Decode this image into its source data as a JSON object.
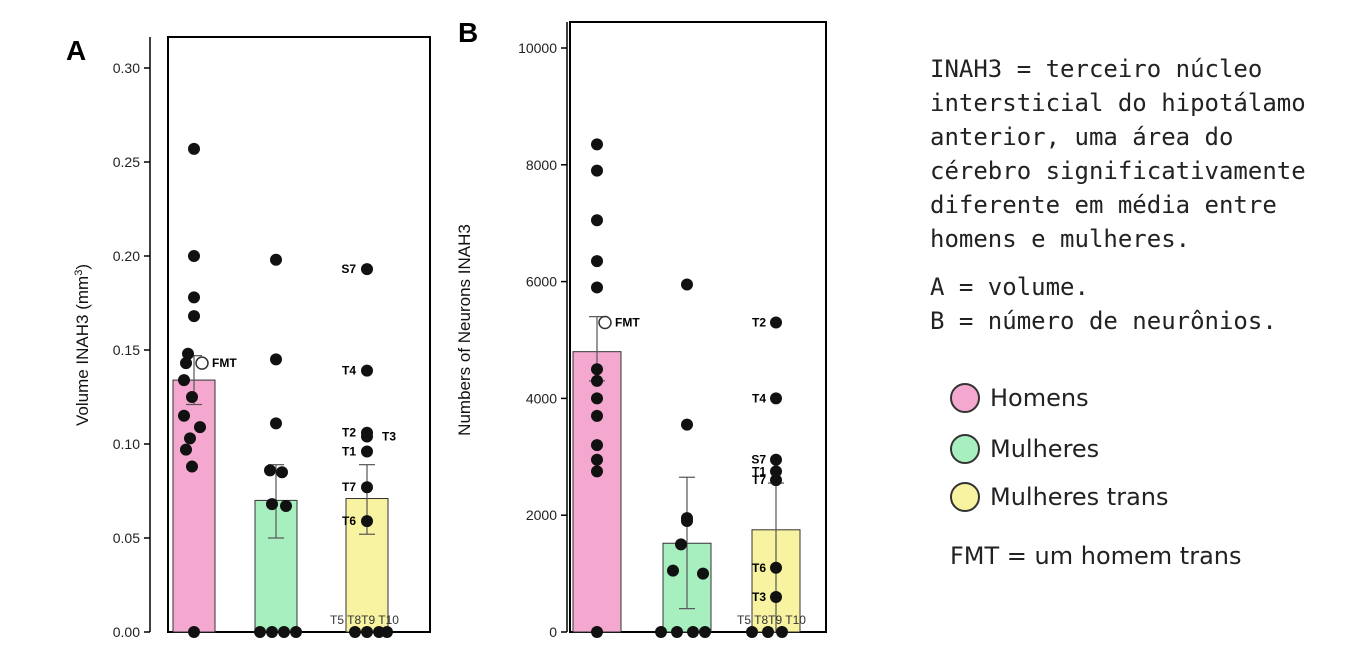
{
  "legend": {
    "definition_lines": [
      "INAH3 = terceiro núcleo",
      "intersticial do hipotálamo",
      "anterior, uma área do",
      "cérebro significativamente",
      "diferente em média entre",
      "homens e mulheres."
    ],
    "abbr_a": "A = volume.",
    "abbr_b": "B = número de neurônios.",
    "groups": [
      {
        "label": "Homens",
        "color": "#f5a8cf"
      },
      {
        "label": "Mulheres",
        "color": "#a8efc0"
      },
      {
        "label": "Mulheres trans",
        "color": "#f7f3a0"
      }
    ],
    "fmt_note": "FMT = um homem trans"
  },
  "chart_data": [
    {
      "type": "bar",
      "panel": "A",
      "ylabel": "Volume INAH3 (mm3)",
      "ylim": [
        0,
        0.3
      ],
      "yticks": [
        "0.00",
        "0.05",
        "0.10",
        "0.15",
        "0.20",
        "0.25",
        "0.30"
      ],
      "ytick_values": [
        0,
        0.05,
        0.1,
        0.15,
        0.2,
        0.25,
        0.3
      ],
      "groups": [
        {
          "name": "Homens",
          "color": "#f5a8cf",
          "mean": 0.134,
          "err_low": 0.121,
          "err_high": 0.147,
          "points": [
            0.257,
            0.2,
            0.178,
            0.168,
            0.148,
            0.143,
            0.134,
            0.125,
            0.115,
            0.109,
            0.103,
            0.097,
            0.088,
            0.0
          ]
        },
        {
          "name": "Mulheres",
          "color": "#a8efc0",
          "mean": 0.07,
          "err_low": 0.05,
          "err_high": 0.089,
          "points": [
            0.198,
            0.145,
            0.111,
            0.086,
            0.085,
            0.068,
            0.067,
            0.0,
            0.0,
            0.0,
            0.0
          ]
        },
        {
          "name": "Mulheres trans",
          "color": "#f7f3a0",
          "mean": 0.071,
          "err_low": 0.052,
          "err_high": 0.089,
          "points": [
            0.193,
            0.139,
            0.106,
            0.104,
            0.096,
            0.077,
            0.059,
            0.0,
            0.0,
            0.0,
            0.0
          ]
        }
      ],
      "fmt": {
        "value": 0.143,
        "label": "FMT"
      },
      "annotations": [
        {
          "label": "S7",
          "value": 0.193
        },
        {
          "label": "T4",
          "value": 0.139
        },
        {
          "label": "T2",
          "value": 0.106
        },
        {
          "label": "T3",
          "value": 0.104,
          "side": "right"
        },
        {
          "label": "T1",
          "value": 0.096
        },
        {
          "label": "T7",
          "value": 0.077
        },
        {
          "label": "T6",
          "value": 0.059
        }
      ],
      "baseline_labels": "T5  T8T9 T10"
    },
    {
      "type": "bar",
      "panel": "B",
      "ylabel": "Numbers of Neurons INAH3",
      "ylim": [
        0,
        10000
      ],
      "yticks": [
        "0",
        "2000",
        "4000",
        "6000",
        "8000",
        "10000"
      ],
      "ytick_values": [
        0,
        2000,
        4000,
        6000,
        8000,
        10000
      ],
      "groups": [
        {
          "name": "Homens",
          "color": "#f5a8cf",
          "mean": 4800,
          "err_low": 4300,
          "err_high": 5400,
          "points": [
            8350,
            7900,
            7050,
            6350,
            5900,
            4500,
            4300,
            4000,
            3700,
            3200,
            2950,
            2750,
            0
          ]
        },
        {
          "name": "Mulheres",
          "color": "#a8efc0",
          "mean": 1520,
          "err_low": 400,
          "err_high": 2650,
          "points": [
            5950,
            3550,
            1950,
            1900,
            1500,
            1050,
            1000,
            0,
            0,
            0,
            0
          ]
        },
        {
          "name": "Mulheres trans",
          "color": "#f7f3a0",
          "mean": 1750,
          "err_low": 0,
          "err_high": 2550,
          "points": [
            5300,
            4000,
            2950,
            2750,
            2600,
            1100,
            600,
            0,
            0,
            0
          ]
        }
      ],
      "fmt": {
        "value": 5300,
        "label": "FMT"
      },
      "annotations": [
        {
          "label": "T2",
          "value": 5300
        },
        {
          "label": "T4",
          "value": 4000
        },
        {
          "label": "S7",
          "value": 2950
        },
        {
          "label": "T1",
          "value": 2750
        },
        {
          "label": "T7",
          "value": 2600
        },
        {
          "label": "T6",
          "value": 1100
        },
        {
          "label": "T3",
          "value": 600
        }
      ],
      "baseline_labels": "T5 T8T9 T10"
    }
  ]
}
